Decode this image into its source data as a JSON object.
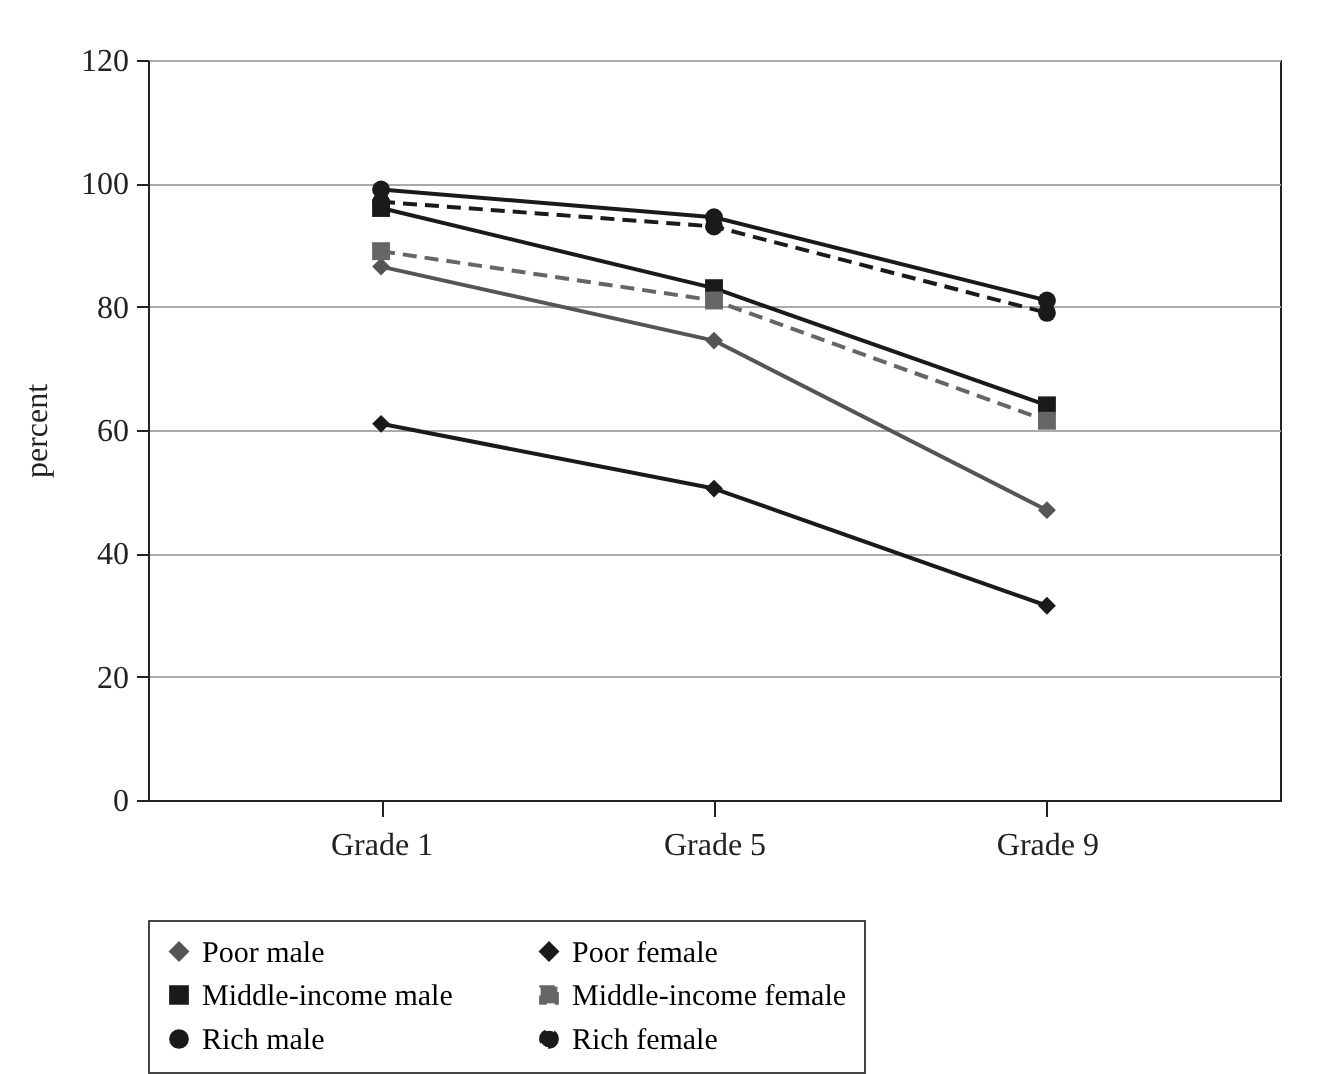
{
  "chart_data": {
    "type": "line",
    "ylabel": "percent",
    "categories": [
      "Grade 1",
      "Grade 5",
      "Grade 9"
    ],
    "ylim": [
      0,
      120
    ],
    "yticks": [
      0,
      20,
      40,
      60,
      80,
      100,
      120
    ],
    "grid": "y",
    "legend": "bottom",
    "series": [
      {
        "name": "Poor male",
        "color": "#555555",
        "marker": "diamond",
        "line_style": "solid",
        "values": [
          86.5,
          74.5,
          47
        ]
      },
      {
        "name": "Poor female",
        "color": "#1a1a1a",
        "marker": "diamond",
        "line_style": "solid",
        "values": [
          61,
          50.5,
          31.5
        ]
      },
      {
        "name": "Middle-income male",
        "color": "#1a1a1a",
        "marker": "square",
        "line_style": "solid",
        "values": [
          96,
          83,
          64
        ]
      },
      {
        "name": "Middle-income female",
        "color": "#666666",
        "marker": "square",
        "line_style": "dashed",
        "values": [
          89,
          81,
          61.5
        ]
      },
      {
        "name": "Rich male",
        "color": "#1a1a1a",
        "marker": "circle",
        "line_style": "solid",
        "values": [
          99,
          94.5,
          81
        ]
      },
      {
        "name": "Rich female",
        "color": "#1a1a1a",
        "marker": "circle",
        "line_style": "dashed",
        "values": [
          97,
          93,
          79
        ]
      }
    ]
  }
}
